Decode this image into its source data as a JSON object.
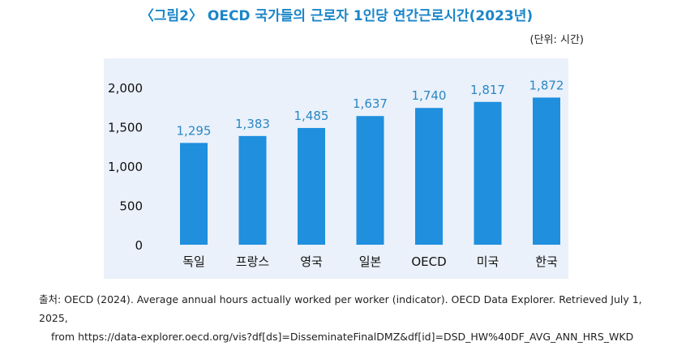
{
  "title": "〈그림2〉 OECD 국가들의 근로자 1인당 연간근로시간(2023년)",
  "unit_label": "(단위: 시간)",
  "source_line1": "출처: OECD (2024). Average annual hours actually worked per worker (indicator). OECD Data Explorer. Retrieved July 1, 2025,",
  "source_line2": "from https://data-explorer.oecd.org/vis?df[ds]=DisseminateFinalDMZ&df[id]=DSD_HW%40DF_AVG_ANN_HRS_WKD",
  "colors": {
    "bar": "#1f8fde",
    "label": "#2a87c4",
    "panel": "#eaf1fa",
    "title": "#1b86c9"
  },
  "chart_data": {
    "type": "bar",
    "categories": [
      "독일",
      "프랑스",
      "영국",
      "일본",
      "OECD",
      "미국",
      "한국"
    ],
    "values": [
      1295,
      1383,
      1485,
      1637,
      1740,
      1817,
      1872
    ],
    "value_labels": [
      "1,295",
      "1,383",
      "1,485",
      "1,637",
      "1,740",
      "1,817",
      "1,872"
    ],
    "yticks": [
      0,
      500,
      1000,
      1500,
      2000
    ],
    "ytick_labels": [
      "0",
      "500",
      "1,000",
      "1,500",
      "2,000"
    ],
    "ylim": [
      0,
      2000
    ],
    "grid": false,
    "legend": "none"
  }
}
